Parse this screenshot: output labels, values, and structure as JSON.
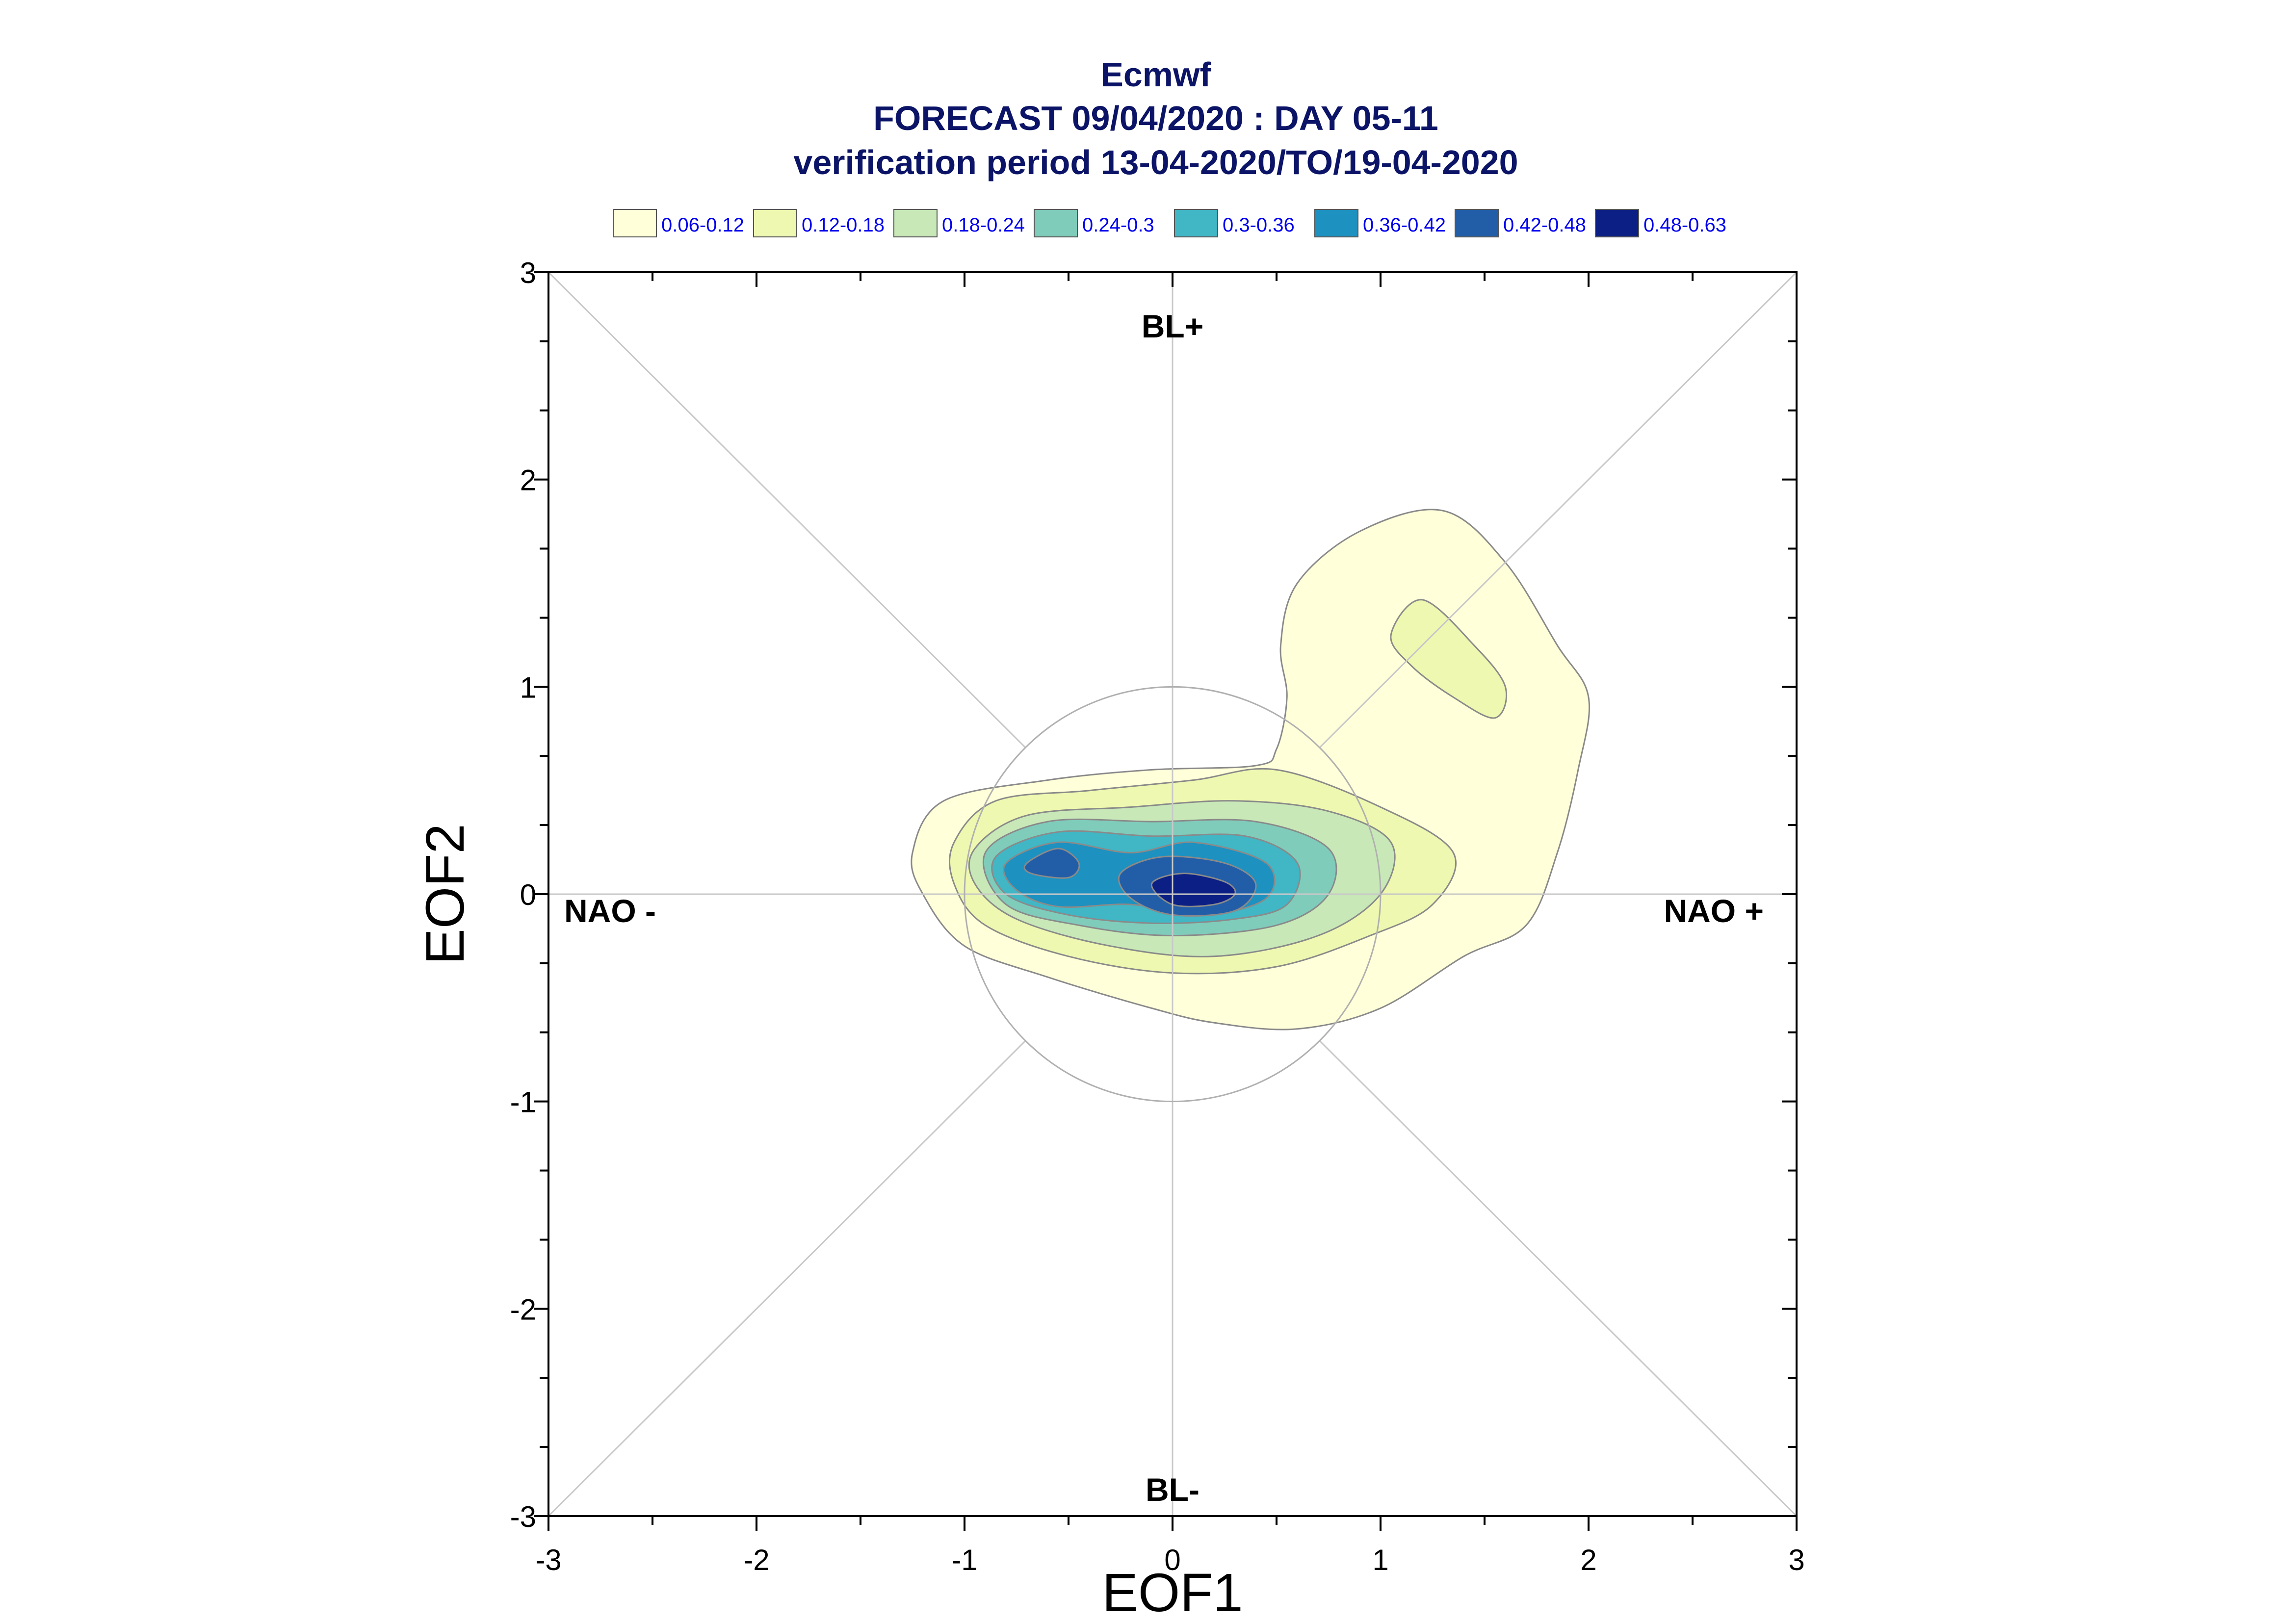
{
  "chart_data": {
    "type": "contour",
    "title": "Ecmwf",
    "subtitle_lines": [
      "FORECAST 09/04/2020 : DAY 05-11",
      "verification period 13-04-2020/TO/19-04-2020"
    ],
    "xlabel": "EOF1",
    "ylabel": "EOF2",
    "xlim": [
      -3,
      3
    ],
    "ylim": [
      -3,
      3
    ],
    "xticks": [
      "-3",
      "-2",
      "-1",
      "0",
      "1",
      "2",
      "3"
    ],
    "yticks": [
      "3",
      "2",
      "1",
      "0",
      "-1",
      "-2",
      "-3"
    ],
    "regime_labels": {
      "top": "BL+",
      "bottom": "BL-",
      "left": "NAO -",
      "right": "NAO +"
    },
    "legend": [
      {
        "label": "0.06-0.12",
        "color": "#ffffd9"
      },
      {
        "label": "0.12-0.18",
        "color": "#eef8b0"
      },
      {
        "label": "0.18-0.24",
        "color": "#c8e8b8"
      },
      {
        "label": "0.24-0.3",
        "color": "#7fccbb"
      },
      {
        "label": "0.3-0.36",
        "color": "#41b6c4"
      },
      {
        "label": "0.36-0.42",
        "color": "#1d91c0"
      },
      {
        "label": "0.42-0.48",
        "color": "#225ea8"
      },
      {
        "label": "0.48-0.63",
        "color": "#0c1f84"
      }
    ],
    "unit_circle_radius": 1,
    "density_levels": [
      {
        "level": "0.06-0.12",
        "outline": [
          [
            -1.25,
            0.2
          ],
          [
            -1.1,
            0.45
          ],
          [
            -0.6,
            0.55
          ],
          [
            -0.1,
            0.6
          ],
          [
            0.4,
            0.62
          ],
          [
            0.5,
            0.7
          ],
          [
            0.55,
            0.95
          ],
          [
            0.52,
            1.2
          ],
          [
            0.6,
            1.5
          ],
          [
            0.9,
            1.75
          ],
          [
            1.3,
            1.85
          ],
          [
            1.6,
            1.6
          ],
          [
            1.85,
            1.2
          ],
          [
            2.0,
            0.95
          ],
          [
            1.95,
            0.6
          ],
          [
            1.85,
            0.2
          ],
          [
            1.7,
            -0.15
          ],
          [
            1.4,
            -0.3
          ],
          [
            1.0,
            -0.55
          ],
          [
            0.6,
            -0.65
          ],
          [
            0.2,
            -0.62
          ],
          [
            -0.1,
            -0.55
          ],
          [
            -0.6,
            -0.4
          ],
          [
            -1.0,
            -0.25
          ],
          [
            -1.2,
            0.0
          ]
        ]
      },
      {
        "level": "0.12-0.18",
        "outline": [
          [
            -1.05,
            0.25
          ],
          [
            -0.85,
            0.45
          ],
          [
            -0.4,
            0.5
          ],
          [
            0.1,
            0.55
          ],
          [
            0.5,
            0.6
          ],
          [
            1.0,
            0.42
          ],
          [
            1.35,
            0.2
          ],
          [
            1.25,
            -0.05
          ],
          [
            0.95,
            -0.2
          ],
          [
            0.5,
            -0.35
          ],
          [
            0.0,
            -0.38
          ],
          [
            -0.5,
            -0.3
          ],
          [
            -0.9,
            -0.15
          ],
          [
            -1.05,
            0.05
          ]
        ]
      },
      {
        "level": "0.12-0.18 (secondary)",
        "outline": [
          [
            1.05,
            1.25
          ],
          [
            1.2,
            1.42
          ],
          [
            1.45,
            1.2
          ],
          [
            1.6,
            1.0
          ],
          [
            1.55,
            0.85
          ],
          [
            1.35,
            0.95
          ],
          [
            1.15,
            1.1
          ]
        ]
      },
      {
        "level": "0.18-0.24",
        "outline": [
          [
            -0.95,
            0.22
          ],
          [
            -0.7,
            0.38
          ],
          [
            -0.2,
            0.42
          ],
          [
            0.3,
            0.45
          ],
          [
            0.75,
            0.4
          ],
          [
            1.05,
            0.25
          ],
          [
            1.0,
            0.0
          ],
          [
            0.7,
            -0.2
          ],
          [
            0.2,
            -0.3
          ],
          [
            -0.3,
            -0.25
          ],
          [
            -0.75,
            -0.12
          ],
          [
            -0.95,
            0.05
          ]
        ]
      },
      {
        "level": "0.24-0.3",
        "outline": [
          [
            -0.9,
            0.2
          ],
          [
            -0.6,
            0.35
          ],
          [
            -0.1,
            0.35
          ],
          [
            0.4,
            0.35
          ],
          [
            0.75,
            0.22
          ],
          [
            0.75,
            0.0
          ],
          [
            0.5,
            -0.15
          ],
          [
            0.0,
            -0.2
          ],
          [
            -0.45,
            -0.15
          ],
          [
            -0.8,
            -0.05
          ]
        ]
      },
      {
        "level": "0.3-0.36",
        "outline": [
          [
            -0.85,
            0.18
          ],
          [
            -0.55,
            0.3
          ],
          [
            -0.1,
            0.28
          ],
          [
            0.35,
            0.28
          ],
          [
            0.6,
            0.15
          ],
          [
            0.55,
            -0.05
          ],
          [
            0.3,
            -0.12
          ],
          [
            -0.1,
            -0.14
          ],
          [
            -0.5,
            -0.1
          ],
          [
            -0.8,
            0.0
          ]
        ]
      },
      {
        "level": "0.36-0.42",
        "outline": [
          [
            -0.8,
            0.15
          ],
          [
            -0.55,
            0.25
          ],
          [
            -0.2,
            0.2
          ],
          [
            0.1,
            0.25
          ],
          [
            0.45,
            0.15
          ],
          [
            0.45,
            -0.02
          ],
          [
            0.15,
            -0.1
          ],
          [
            -0.2,
            -0.05
          ],
          [
            -0.55,
            -0.06
          ],
          [
            -0.75,
            0.02
          ]
        ]
      },
      {
        "level": "0.42-0.48",
        "outline": [
          [
            -0.7,
            0.15
          ],
          [
            -0.55,
            0.22
          ],
          [
            -0.45,
            0.15
          ],
          [
            -0.5,
            0.08
          ],
          [
            -0.68,
            0.1
          ]
        ]
      },
      {
        "level": "0.42-0.48 (secondary)",
        "outline": [
          [
            -0.25,
            0.1
          ],
          [
            -0.05,
            0.18
          ],
          [
            0.25,
            0.15
          ],
          [
            0.4,
            0.05
          ],
          [
            0.3,
            -0.08
          ],
          [
            0.0,
            -0.1
          ],
          [
            -0.2,
            -0.02
          ]
        ]
      },
      {
        "level": "0.48-0.63",
        "outline": [
          [
            -0.1,
            0.05
          ],
          [
            0.05,
            0.1
          ],
          [
            0.25,
            0.06
          ],
          [
            0.3,
            0.0
          ],
          [
            0.2,
            -0.05
          ],
          [
            0.0,
            -0.05
          ]
        ]
      }
    ]
  }
}
